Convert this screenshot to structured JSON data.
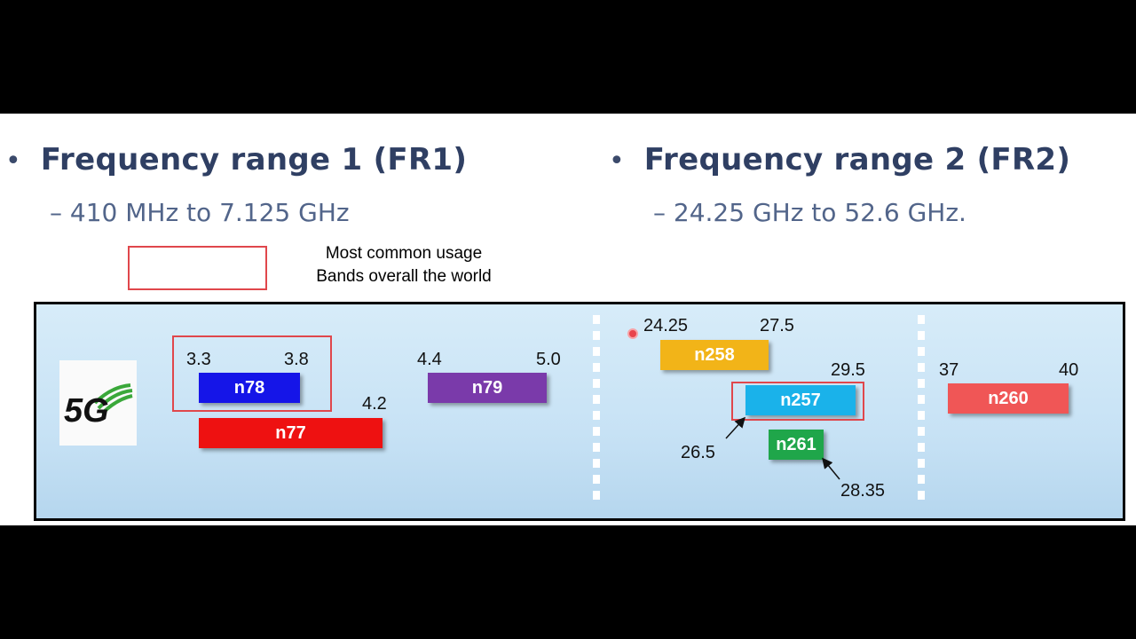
{
  "fr1": {
    "bullet": "•",
    "title": "Frequency range 1 (FR1)",
    "range": "– 410 MHz to 7.125 GHz"
  },
  "fr2": {
    "bullet": "•",
    "title": "Frequency range 2 (FR2)",
    "range": "– 24.25 GHz to 52.6 GHz."
  },
  "callout": {
    "line1": "Most common usage",
    "line2": "Bands overall the world"
  },
  "logo": {
    "text": "5G",
    "icon": "5g-signal-logo"
  },
  "bands": {
    "n78": {
      "label": "n78",
      "low": "3.3",
      "high": "3.8",
      "color": "#1515e8"
    },
    "n77": {
      "label": "n77",
      "high": "4.2",
      "color": "#ee1111"
    },
    "n79": {
      "label": "n79",
      "low": "4.4",
      "high": "5.0",
      "color": "#7a3aaa"
    },
    "n258": {
      "label": "n258",
      "low": "24.25",
      "high": "27.5",
      "color": "#f2b418"
    },
    "n257": {
      "label": "n257",
      "low": "26.5",
      "high": "29.5",
      "color": "#1ab2ea"
    },
    "n261": {
      "label": "n261",
      "high": "28.35",
      "color": "#1fa64a"
    },
    "n260": {
      "label": "n260",
      "low": "37",
      "high": "40",
      "color": "#f05656"
    }
  },
  "colors": {
    "highlight_outline": "#e0474c",
    "heading": "#2f3f63",
    "subheading": "#52658a"
  }
}
